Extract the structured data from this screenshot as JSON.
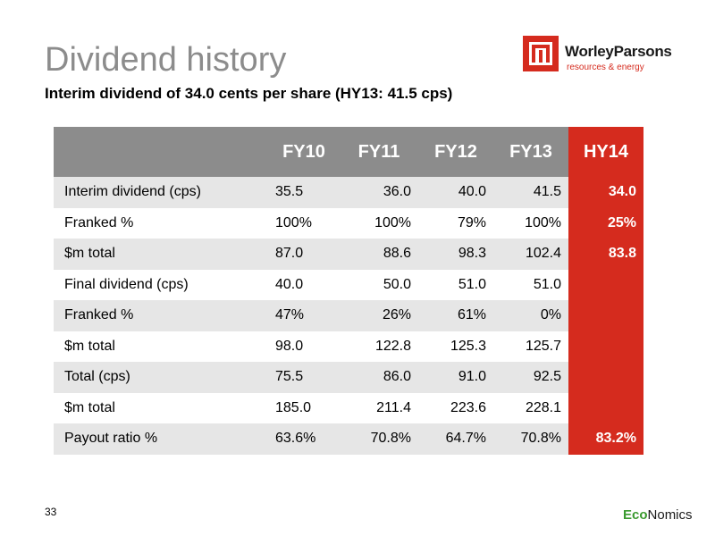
{
  "slide": {
    "title": "Dividend history",
    "subtitle": "Interim dividend of 34.0 cents per share (HY13: 41.5 cps)",
    "page_number": "33"
  },
  "logo": {
    "brand": "WorleyParsons",
    "tagline": "resources & energy"
  },
  "footer_logo": {
    "part1": "Eco",
    "part2": "Nomics"
  },
  "colors": {
    "accent_red": "#d52b1e",
    "header_grey": "#8c8c8c",
    "row_alt": "#e6e6e6",
    "title_grey": "#8c8c8c"
  },
  "table": {
    "columns": [
      "",
      "FY10",
      "FY11",
      "FY12",
      "FY13",
      "HY14"
    ],
    "rows": [
      {
        "label": "Interim dividend (cps)",
        "values": [
          "35.5",
          "36.0",
          "40.0",
          "41.5",
          "34.0"
        ]
      },
      {
        "label": "Franked %",
        "values": [
          "100%",
          "100%",
          "79%",
          "100%",
          "25%"
        ]
      },
      {
        "label": "$m total",
        "values": [
          "87.0",
          "88.6",
          "98.3",
          "102.4",
          "83.8"
        ]
      },
      {
        "label": "Final dividend (cps)",
        "values": [
          "40.0",
          "50.0",
          "51.0",
          "51.0",
          ""
        ]
      },
      {
        "label": "Franked %",
        "values": [
          "47%",
          "26%",
          "61%",
          "0%",
          ""
        ]
      },
      {
        "label": "$m total",
        "values": [
          "98.0",
          "122.8",
          "125.3",
          "125.7",
          ""
        ]
      },
      {
        "label": "Total (cps)",
        "values": [
          "75.5",
          "86.0",
          "91.0",
          "92.5",
          ""
        ]
      },
      {
        "label": "$m total",
        "values": [
          "185.0",
          "211.4",
          "223.6",
          "228.1",
          ""
        ]
      },
      {
        "label": "Payout ratio %",
        "values": [
          "63.6%",
          "70.8%",
          "64.7%",
          "70.8%",
          "83.2%"
        ]
      }
    ]
  }
}
